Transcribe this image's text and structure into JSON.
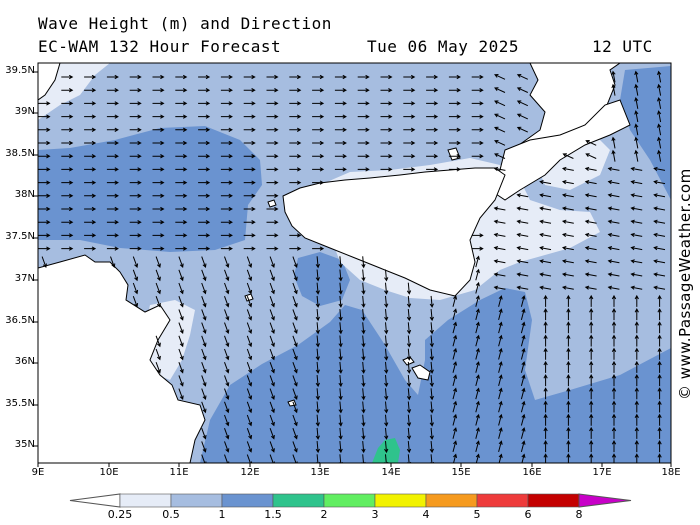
{
  "header": {
    "title": "Wave Height (m) and Direction",
    "model": "EC-WAM 132 Hour Forecast",
    "date": "Tue 06 May 2025",
    "time": "12 UTC"
  },
  "credit": "© www.PassageWeather.com",
  "map": {
    "lat_labels": [
      "39.5N",
      "39N",
      "38.5N",
      "38N",
      "37.5N",
      "37N",
      "36.5N",
      "36N",
      "35.5N",
      "35N"
    ],
    "lon_labels": [
      "9E",
      "10E",
      "11E",
      "12E",
      "13E",
      "14E",
      "15E",
      "16E",
      "17E",
      "18E"
    ],
    "lat_range": [
      34.8,
      39.7
    ],
    "lon_range": [
      9.0,
      18.0
    ]
  },
  "colorbar": {
    "labels": [
      "0.25",
      "0.5",
      "1",
      "1.5",
      "2",
      "3",
      "4",
      "5",
      "6",
      "8"
    ],
    "colors": [
      "#e6ecf7",
      "#a6bde0",
      "#6a93d0",
      "#2fc38c",
      "#61ee61",
      "#f2f200",
      "#f59a1f",
      "#ee3b3b",
      "#c40000",
      "#c800c8"
    ]
  },
  "palette": {
    "land": "#ffffff",
    "band_025": "#e6ecf7",
    "band_05": "#a6bde0",
    "band_1": "#6a93d0",
    "band_15": "#2fc38c"
  }
}
